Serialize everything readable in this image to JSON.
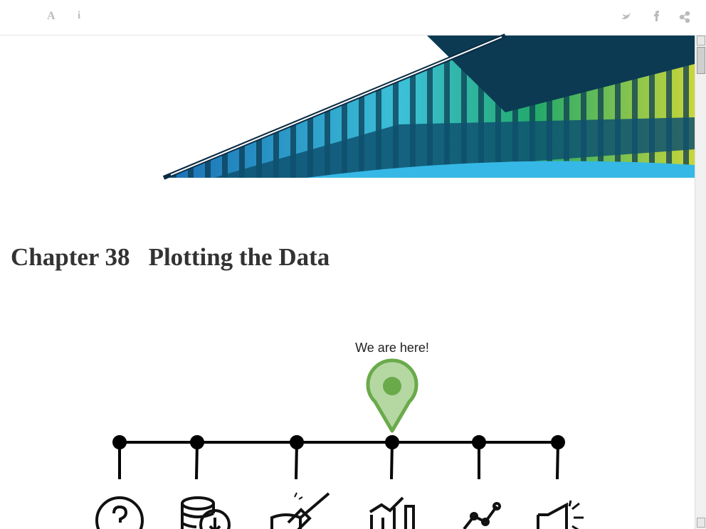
{
  "toolbar": {
    "font_settings": "A",
    "info": "i"
  },
  "chapter": {
    "number": "Chapter 38",
    "title": "Plotting the Data"
  },
  "figure": {
    "marker_label": "We are here!"
  }
}
